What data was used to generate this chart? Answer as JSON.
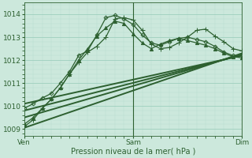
{
  "xlabel": "Pression niveau de la mer( hPa )",
  "bg_color": "#cce8dc",
  "grid_color_major": "#9ecfbe",
  "grid_color_minor": "#b8dece",
  "line_color": "#2d6030",
  "ylim": [
    1008.7,
    1014.5
  ],
  "xlim": [
    0,
    48
  ],
  "yticks": [
    1009,
    1010,
    1011,
    1012,
    1013,
    1014
  ],
  "xtick_positions": [
    0,
    24,
    48
  ],
  "xtick_labels": [
    "Ven",
    "Sam",
    "Dim"
  ],
  "series": [
    {
      "x": [
        0,
        2,
        4,
        6,
        8,
        10,
        12,
        14,
        16,
        18,
        20,
        22,
        24,
        26,
        28,
        30,
        32,
        34,
        36,
        38,
        40,
        42,
        44,
        46,
        48
      ],
      "y": [
        1009.1,
        1009.4,
        1009.9,
        1010.3,
        1010.8,
        1011.4,
        1011.9,
        1012.35,
        1012.6,
        1013.0,
        1013.8,
        1013.85,
        1013.75,
        1013.3,
        1012.7,
        1012.5,
        1012.55,
        1012.75,
        1013.0,
        1013.3,
        1013.35,
        1013.05,
        1012.8,
        1012.5,
        1012.4
      ],
      "marker": "+",
      "ms": 4,
      "color": "#2d6030",
      "lw": 0.9
    },
    {
      "x": [
        0,
        2,
        4,
        6,
        8,
        10,
        12,
        14,
        16,
        18,
        20,
        22,
        24,
        26,
        28,
        30,
        32,
        34,
        36,
        38,
        40,
        42,
        44,
        46,
        48
      ],
      "y": [
        1009.9,
        1010.1,
        1010.35,
        1010.55,
        1011.0,
        1011.5,
        1012.2,
        1012.4,
        1013.1,
        1013.85,
        1013.95,
        1013.8,
        1013.55,
        1013.1,
        1012.75,
        1012.65,
        1012.8,
        1012.95,
        1013.0,
        1012.9,
        1012.8,
        1012.6,
        1012.35,
        1012.2,
        1012.2
      ],
      "marker": "D",
      "ms": 2.5,
      "color": "#2d6030",
      "lw": 0.9
    },
    {
      "x": [
        0,
        2,
        4,
        6,
        8,
        10,
        12,
        14,
        16,
        18,
        20,
        22,
        24,
        26,
        28,
        30,
        32,
        34,
        36,
        38,
        40,
        42,
        44,
        46,
        48
      ],
      "y": [
        1009.2,
        1009.5,
        1009.9,
        1010.3,
        1010.8,
        1011.4,
        1012.0,
        1012.5,
        1013.05,
        1013.4,
        1013.7,
        1013.6,
        1013.15,
        1012.75,
        1012.5,
        1012.7,
        1012.85,
        1012.95,
        1012.85,
        1012.75,
        1012.65,
        1012.5,
        1012.3,
        1012.15,
        1012.1
      ],
      "marker": "^",
      "ms": 3,
      "color": "#2d6030",
      "lw": 0.9
    },
    {
      "x": [
        0,
        48
      ],
      "y": [
        1009.05,
        1012.3
      ],
      "marker": null,
      "color": "#2d6030",
      "lw": 1.4
    },
    {
      "x": [
        0,
        48
      ],
      "y": [
        1009.5,
        1012.25
      ],
      "marker": null,
      "color": "#2d6030",
      "lw": 1.4
    },
    {
      "x": [
        0,
        48
      ],
      "y": [
        1009.8,
        1012.22
      ],
      "marker": null,
      "color": "#2d6030",
      "lw": 1.4
    },
    {
      "x": [
        0,
        48
      ],
      "y": [
        1010.1,
        1012.2
      ],
      "marker": null,
      "color": "#2d6030",
      "lw": 1.4
    }
  ]
}
